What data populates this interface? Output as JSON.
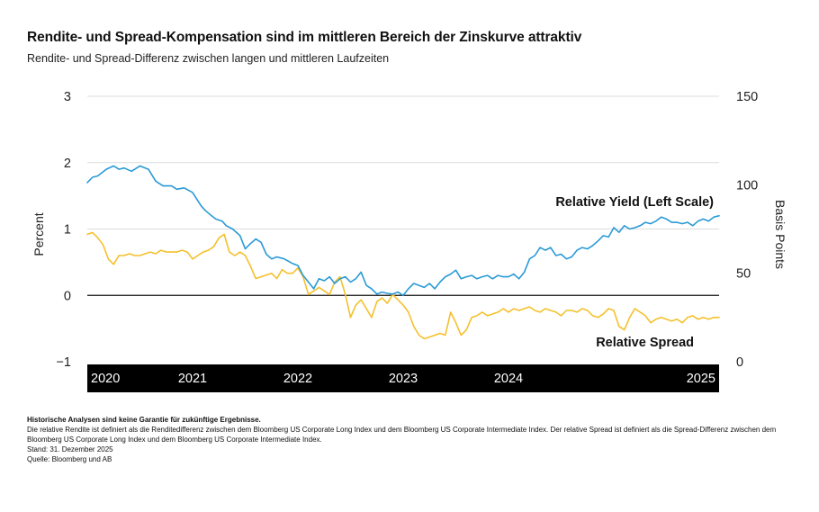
{
  "header": {
    "title": "Rendite- und Spread-Kompensation sind im mittleren Bereich der Zinskurve attraktiv",
    "subtitle": "Rendite- und Spread-Differenz zwischen langen und mittleren Laufzeiten"
  },
  "chart_data": {
    "type": "line",
    "title": "Rendite- und Spread-Kompensation sind im mittleren Bereich der Zinskurve attraktiv",
    "subtitle": "Rendite- und Spread-Differenz zwischen langen und mittleren Laufzeiten",
    "xlabel": "",
    "ylabel_left": "Percent",
    "ylabel_right": "Basis Points",
    "ylim_left": [
      -1,
      3
    ],
    "ylim_right": [
      0,
      150
    ],
    "yticks_left": [
      "3",
      "2",
      "1",
      "0",
      "−1"
    ],
    "yticks_right": [
      "150",
      "100",
      "50",
      "0"
    ],
    "xticks": [
      "2020",
      "2021",
      "2022",
      "2023",
      "2024",
      "2025"
    ],
    "xlim": [
      2020.0,
      2026.0
    ],
    "grid": true,
    "zero_line": true,
    "colors": {
      "yield": "#2a9ad6",
      "spread": "#f5c02c",
      "axis_band": "#000000",
      "grid": "#dddddd"
    },
    "series": [
      {
        "name": "Relative Yield (Left Scale)",
        "axis": "left",
        "x": [
          2020.0,
          2020.05,
          2020.1,
          2020.18,
          2020.25,
          2020.3,
          2020.35,
          2020.42,
          2020.5,
          2020.58,
          2020.65,
          2020.72,
          2020.8,
          2020.85,
          2020.92,
          2021.0,
          2021.08,
          2021.12,
          2021.18,
          2021.22,
          2021.28,
          2021.32,
          2021.38,
          2021.45,
          2021.5,
          2021.55,
          2021.6,
          2021.65,
          2021.7,
          2021.75,
          2021.8,
          2021.87,
          2021.95,
          2022.0,
          2022.05,
          2022.1,
          2022.15,
          2022.2,
          2022.25,
          2022.3,
          2022.35,
          2022.4,
          2022.45,
          2022.5,
          2022.55,
          2022.6,
          2022.65,
          2022.7,
          2022.75,
          2022.8,
          2022.85,
          2022.9,
          2022.95,
          2023.0,
          2023.05,
          2023.1,
          2023.15,
          2023.2,
          2023.25,
          2023.3,
          2023.35,
          2023.4,
          2023.45,
          2023.5,
          2023.55,
          2023.6,
          2023.65,
          2023.7,
          2023.75,
          2023.8,
          2023.85,
          2023.9,
          2023.95,
          2024.0,
          2024.05,
          2024.1,
          2024.15,
          2024.2,
          2024.25,
          2024.3,
          2024.35,
          2024.4,
          2024.45,
          2024.5,
          2024.55,
          2024.6,
          2024.65,
          2024.7,
          2024.75,
          2024.8,
          2024.85,
          2024.9,
          2024.95,
          2025.0,
          2025.05,
          2025.1,
          2025.15,
          2025.2,
          2025.25,
          2025.3,
          2025.35,
          2025.4,
          2025.45,
          2025.5,
          2025.55,
          2025.6,
          2025.65,
          2025.7,
          2025.75,
          2025.8,
          2025.85,
          2025.9,
          2025.95,
          2026.0
        ],
        "values": [
          1.7,
          1.78,
          1.8,
          1.9,
          1.95,
          1.9,
          1.92,
          1.87,
          1.95,
          1.9,
          1.72,
          1.65,
          1.65,
          1.6,
          1.62,
          1.55,
          1.35,
          1.28,
          1.2,
          1.15,
          1.12,
          1.05,
          1.0,
          0.9,
          0.7,
          0.78,
          0.85,
          0.8,
          0.62,
          0.55,
          0.58,
          0.55,
          0.48,
          0.45,
          0.3,
          0.2,
          0.1,
          0.25,
          0.22,
          0.28,
          0.18,
          0.25,
          0.28,
          0.2,
          0.25,
          0.35,
          0.15,
          0.1,
          0.02,
          0.05,
          0.03,
          0.02,
          0.05,
          0.0,
          0.1,
          0.18,
          0.15,
          0.12,
          0.18,
          0.1,
          0.2,
          0.28,
          0.32,
          0.38,
          0.25,
          0.28,
          0.3,
          0.25,
          0.28,
          0.3,
          0.25,
          0.3,
          0.28,
          0.28,
          0.32,
          0.25,
          0.35,
          0.55,
          0.6,
          0.72,
          0.68,
          0.72,
          0.6,
          0.62,
          0.55,
          0.58,
          0.68,
          0.72,
          0.7,
          0.75,
          0.82,
          0.9,
          0.88,
          1.02,
          0.95,
          1.05,
          1.0,
          1.02,
          1.05,
          1.1,
          1.08,
          1.12,
          1.18,
          1.15,
          1.1,
          1.1,
          1.08,
          1.1,
          1.05,
          1.12,
          1.15,
          1.12,
          1.18,
          1.2
        ]
      },
      {
        "name": "Relative Spread",
        "axis": "right",
        "x": [
          2020.0,
          2020.05,
          2020.1,
          2020.15,
          2020.2,
          2020.25,
          2020.3,
          2020.35,
          2020.4,
          2020.45,
          2020.5,
          2020.55,
          2020.6,
          2020.65,
          2020.7,
          2020.75,
          2020.8,
          2020.85,
          2020.9,
          2020.95,
          2021.0,
          2021.05,
          2021.1,
          2021.15,
          2021.2,
          2021.25,
          2021.3,
          2021.35,
          2021.4,
          2021.45,
          2021.5,
          2021.55,
          2021.6,
          2021.65,
          2021.7,
          2021.75,
          2021.8,
          2021.85,
          2021.9,
          2021.95,
          2022.0,
          2022.05,
          2022.1,
          2022.15,
          2022.2,
          2022.25,
          2022.3,
          2022.35,
          2022.4,
          2022.45,
          2022.5,
          2022.55,
          2022.6,
          2022.65,
          2022.7,
          2022.75,
          2022.8,
          2022.85,
          2022.9,
          2022.95,
          2023.0,
          2023.05,
          2023.1,
          2023.15,
          2023.2,
          2023.25,
          2023.3,
          2023.35,
          2023.4,
          2023.45,
          2023.5,
          2023.55,
          2023.6,
          2023.65,
          2023.7,
          2023.75,
          2023.8,
          2023.85,
          2023.9,
          2023.95,
          2024.0,
          2024.05,
          2024.1,
          2024.15,
          2024.2,
          2024.25,
          2024.3,
          2024.35,
          2024.4,
          2024.45,
          2024.5,
          2024.55,
          2024.6,
          2024.65,
          2024.7,
          2024.75,
          2024.8,
          2024.85,
          2024.9,
          2024.95,
          2025.0,
          2025.05,
          2025.1,
          2025.15,
          2025.2,
          2025.25,
          2025.3,
          2025.35,
          2025.4,
          2025.45,
          2025.5,
          2025.55,
          2025.6,
          2025.65,
          2025.7,
          2025.75,
          2025.8,
          2025.85,
          2025.9,
          2025.95,
          2026.0
        ],
        "values": [
          72,
          73,
          70,
          66,
          58,
          55,
          60,
          60,
          61,
          60,
          60,
          61,
          62,
          61,
          63,
          62,
          62,
          62,
          63,
          62,
          58,
          60,
          62,
          63,
          65,
          70,
          72,
          62,
          60,
          62,
          60,
          54,
          47,
          48,
          49,
          50,
          47,
          52,
          50,
          50,
          53,
          48,
          38,
          40,
          42,
          40,
          38,
          45,
          48,
          38,
          25,
          32,
          35,
          30,
          25,
          34,
          36,
          33,
          38,
          35,
          32,
          28,
          20,
          15,
          13,
          14,
          15,
          16,
          15,
          28,
          22,
          15,
          18,
          25,
          26,
          28,
          26,
          27,
          28,
          30,
          28,
          30,
          29,
          30,
          31,
          29,
          28,
          30,
          29,
          28,
          26,
          29,
          29,
          28,
          30,
          29,
          26,
          25,
          27,
          30,
          29,
          20,
          18,
          25,
          30,
          28,
          26,
          22,
          24,
          25,
          24,
          23,
          24,
          22,
          25,
          26,
          24,
          25,
          24,
          25,
          25
        ]
      }
    ],
    "annotations": [
      {
        "text": "Relative Yield (Left Scale)",
        "series": "Relative Yield (Left Scale)"
      },
      {
        "text": "Relative Spread",
        "series": "Relative Spread"
      }
    ]
  },
  "footnotes": {
    "disclaimer": "Historische Analysen sind keine Garantie für zukünftige Ergebnisse.",
    "definition": "Die relative Rendite ist definiert als die Renditedifferenz zwischen dem Bloomberg US Corporate Long Index und dem Bloomberg US Corporate Intermediate Index. Der relative Spread ist definiert als die Spread-Differenz zwischen dem Bloomberg US Corporate Long Index und dem Bloomberg US Corporate Intermediate Index.",
    "date": "Stand: 31. Dezember 2025",
    "source": "Quelle: Bloomberg und AB"
  }
}
